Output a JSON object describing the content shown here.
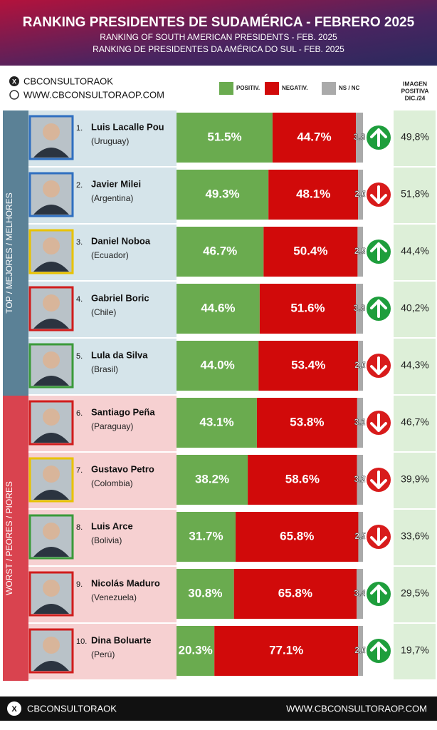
{
  "header": {
    "title": "RANKING PRESIDENTES DE SUDAMÉRICA - FEBRERO 2025",
    "subtitle_en": "RANKING OF SOUTH AMERICAN PRESIDENTS - FEB. 2025",
    "subtitle_pt": "RANKING DE PRESIDENTES DA AMÉRICA DO SUL - FEB. 2025"
  },
  "brand": {
    "handle": "CBCONSULTORAOK",
    "website": "WWW.CBCONSULTORAOP.COM"
  },
  "chart_data": {
    "type": "bar",
    "orientation": "horizontal",
    "stacked": true,
    "categories": [
      "Luis Lacalle Pou",
      "Javier Milei",
      "Daniel Noboa",
      "Gabriel Boric",
      "Lula da Silva",
      "Santiago Peña",
      "Gustavo Petro",
      "Luis Arce",
      "Nicolás Maduro",
      "Dina Boluarte"
    ],
    "ranks": [
      "1.",
      "2.",
      "3.",
      "4.",
      "5.",
      "6.",
      "7.",
      "8.",
      "9.",
      "10."
    ],
    "countries": [
      "(Uruguay)",
      "(Argentina)",
      "(Ecuador)",
      "(Chile)",
      "(Brasil)",
      "(Paraguay)",
      "(Colombia)",
      "(Bolivia)",
      "(Venezuela)",
      "(Perú)"
    ],
    "photo_borders": [
      "#2f6fc0",
      "#2f6fc0",
      "#e8c200",
      "#d01c1c",
      "#3a9a3a",
      "#d01c1c",
      "#e8c200",
      "#3a9a3a",
      "#d01c1c",
      "#d01c1c"
    ],
    "groups": [
      {
        "label": "TOP / MEJORES / MELHORES",
        "color": "#5b8196",
        "panel_color": "#d5e4ea",
        "categories": [
          "Luis Lacalle Pou",
          "Javier Milei",
          "Daniel Noboa",
          "Gabriel Boric",
          "Lula da Silva"
        ]
      },
      {
        "label": "WORST / PEORES / PIORES",
        "color": "#d9434f",
        "panel_color": "#f6d0d1",
        "categories": [
          "Santiago Peña",
          "Gustavo Petro",
          "Luis Arce",
          "Nicolás Maduro",
          "Dina Boluarte"
        ]
      }
    ],
    "series": [
      {
        "name": "POSITIV.",
        "color": "#6aab4f",
        "values": [
          51.5,
          49.3,
          46.7,
          44.6,
          44.0,
          43.1,
          38.2,
          31.7,
          30.8,
          20.3
        ],
        "value_labels": [
          "51.5%",
          "49.3%",
          "46.7%",
          "44.6%",
          "44.0%",
          "43.1%",
          "38.2%",
          "31.7%",
          "30.8%",
          "20.3%"
        ]
      },
      {
        "name": "NEGATIV.",
        "color": "#d10a0a",
        "values": [
          44.7,
          48.1,
          50.4,
          51.6,
          53.4,
          53.8,
          58.6,
          65.8,
          65.8,
          77.1
        ],
        "value_labels": [
          "44.7%",
          "48.1%",
          "50.4%",
          "51.6%",
          "53.4%",
          "53.8%",
          "58.6%",
          "65.8%",
          "65.8%",
          "77.1%"
        ]
      },
      {
        "name": "NS / NC",
        "color": "#aaaaaa",
        "values": [
          3.8,
          2.6,
          2.9,
          3.8,
          2.6,
          3.1,
          3.2,
          2.5,
          3.4,
          2.6
        ]
      }
    ],
    "previous": {
      "title": [
        "IMAGEN",
        "POSITIVA",
        "DIC./24"
      ],
      "color": "#ddefd8",
      "values": [
        49.8,
        51.8,
        44.4,
        40.2,
        44.3,
        46.7,
        39.9,
        33.6,
        29.5,
        19.7
      ],
      "value_labels": [
        "49,8%",
        "51,8%",
        "44,4%",
        "40,2%",
        "44,3%",
        "46,7%",
        "39,9%",
        "33,6%",
        "29,5%",
        "19,7%"
      ]
    },
    "trend": [
      "up",
      "down",
      "up",
      "up",
      "down",
      "down",
      "down",
      "down",
      "up",
      "up"
    ],
    "trend_colors": {
      "up": "#1e9e3c",
      "down": "#d81b1b"
    }
  },
  "footer": {
    "handle": "CBCONSULTORAOK",
    "website": "WWW.CBCONSULTORAOP.COM"
  }
}
